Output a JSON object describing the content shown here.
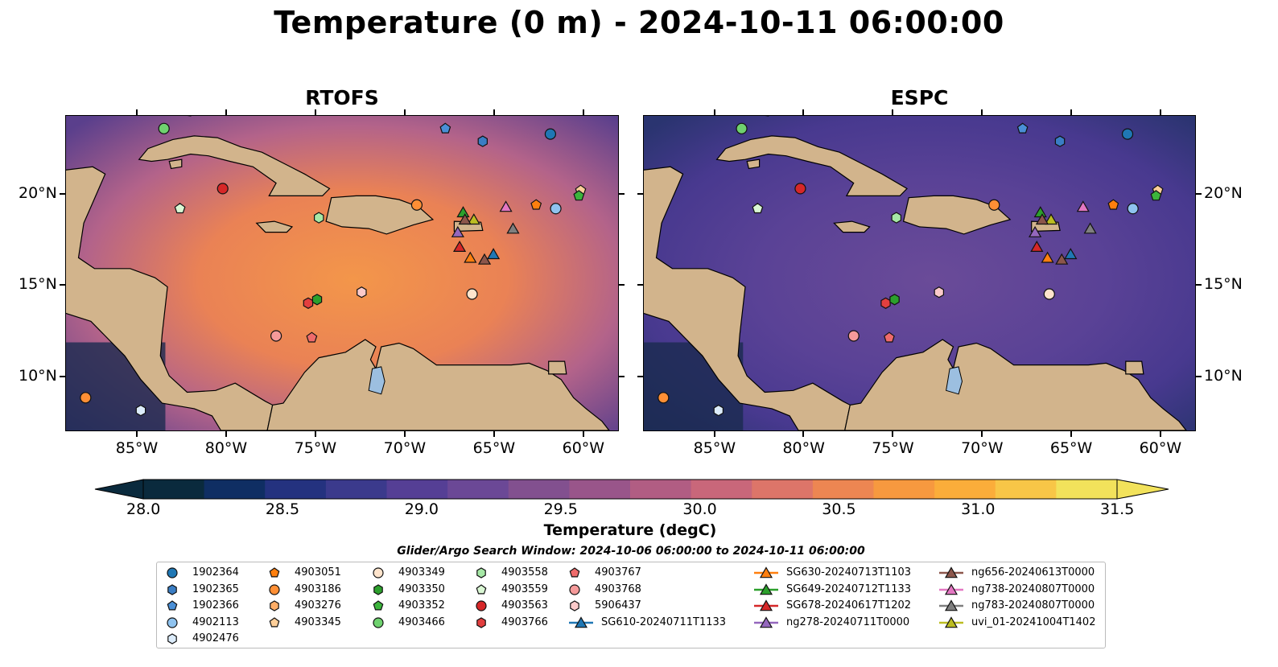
{
  "title": "Temperature (0 m) - 2024-10-11 06:00:00",
  "panels": [
    {
      "id": "left",
      "title": "RTOFS",
      "scheme": "warm"
    },
    {
      "id": "right",
      "title": "ESPC",
      "scheme": "cool"
    }
  ],
  "map_extent": {
    "lon": [
      -89,
      -58
    ],
    "lat": [
      7,
      24.3
    ]
  },
  "x_ticks": [
    {
      "lon": -85,
      "label": "85°W"
    },
    {
      "lon": -80,
      "label": "80°W"
    },
    {
      "lon": -75,
      "label": "75°W"
    },
    {
      "lon": -70,
      "label": "70°W"
    },
    {
      "lon": -65,
      "label": "65°W"
    },
    {
      "lon": -60,
      "label": "60°W"
    }
  ],
  "y_ticks": [
    {
      "lat": 20,
      "label": "20°N"
    },
    {
      "lat": 15,
      "label": "15°N"
    },
    {
      "lat": 10,
      "label": "10°N"
    }
  ],
  "colorbar": {
    "title": "Temperature (degC)",
    "min": 28.0,
    "max": 31.5,
    "extend": "both",
    "tick_values": [
      28.0,
      28.5,
      29.0,
      29.5,
      30.0,
      30.5,
      31.0,
      31.5
    ],
    "tick_labels": [
      "28.0",
      "28.5",
      "29.0",
      "29.5",
      "30.0",
      "30.5",
      "31.0",
      "31.5"
    ],
    "colors": [
      "#0a2a3d",
      "#0f2e63",
      "#24327f",
      "#3b3a8c",
      "#553f95",
      "#6b4896",
      "#82508f",
      "#99558a",
      "#b15d83",
      "#c9677a",
      "#dd7569",
      "#ed8652",
      "#f7993f",
      "#fbad3a",
      "#f8c647",
      "#f2e25b"
    ]
  },
  "legend": {
    "title": "Glider/Argo Search Window: 2024-10-06 06:00:00 to 2024-10-11 06:00:00",
    "columns": [
      [
        {
          "label": "1902364",
          "marker": "circle",
          "color": "#1f77b4"
        },
        {
          "label": "1902365",
          "marker": "hexagon",
          "color": "#3a7dc4"
        },
        {
          "label": "1902366",
          "marker": "pentagon",
          "color": "#4a8fd6"
        },
        {
          "label": "4902113",
          "marker": "circle",
          "color": "#8fc3ef"
        },
        {
          "label": "4902476",
          "marker": "hexagon",
          "color": "#dcecfb"
        }
      ],
      [
        {
          "label": "4903051",
          "marker": "pentagon",
          "color": "#ff7f0e"
        },
        {
          "label": "4903186",
          "marker": "circle",
          "color": "#ff8f35"
        },
        {
          "label": "4903276",
          "marker": "hexagon",
          "color": "#ffad66"
        },
        {
          "label": "4903345",
          "marker": "pentagon",
          "color": "#ffcf99"
        }
      ],
      [
        {
          "label": "4903349",
          "marker": "circle",
          "color": "#ffe4cc"
        },
        {
          "label": "4903350",
          "marker": "hexagon",
          "color": "#2ca02c"
        },
        {
          "label": "4903352",
          "marker": "pentagon",
          "color": "#3cb43c"
        },
        {
          "label": "4903466",
          "marker": "circle",
          "color": "#6fd26f"
        }
      ],
      [
        {
          "label": "4903558",
          "marker": "hexagon",
          "color": "#a6e8a6"
        },
        {
          "label": "4903559",
          "marker": "pentagon",
          "color": "#daf7d4"
        },
        {
          "label": "4903563",
          "marker": "circle",
          "color": "#d62728"
        },
        {
          "label": "4903766",
          "marker": "hexagon",
          "color": "#e23f3f"
        }
      ],
      [
        {
          "label": "4903767",
          "marker": "pentagon",
          "color": "#ef6b6b"
        },
        {
          "label": "4903768",
          "marker": "circle",
          "color": "#f59a9a"
        },
        {
          "label": "5906437",
          "marker": "hexagon",
          "color": "#fbcaca"
        },
        {
          "label": "SG610-20240711T1133",
          "marker": "triangle",
          "color": "#1f77b4"
        }
      ],
      [
        {
          "label": "SG630-20240713T1103",
          "marker": "triangle",
          "color": "#ff7f0e"
        },
        {
          "label": "SG649-20240712T1133",
          "marker": "triangle",
          "color": "#2ca02c"
        },
        {
          "label": "SG678-20240617T1202",
          "marker": "triangle",
          "color": "#d62728"
        },
        {
          "label": "ng278-20240711T0000",
          "marker": "triangle",
          "color": "#9467bd"
        }
      ],
      [
        {
          "label": "ng656-20240613T0000",
          "marker": "triangle",
          "color": "#8c564b"
        },
        {
          "label": "ng738-20240807T0000",
          "marker": "triangle",
          "color": "#e377c2"
        },
        {
          "label": "ng783-20240807T0000",
          "marker": "triangle",
          "color": "#7f7f7f"
        },
        {
          "label": "uvi_01-20241004T1402",
          "marker": "triangle",
          "color": "#bcbd22"
        }
      ]
    ]
  },
  "observations": [
    {
      "lon": -83.5,
      "lat": 23.6,
      "marker": "circle",
      "color": "#6fd26f"
    },
    {
      "lon": -67.7,
      "lat": 23.6,
      "marker": "pentagon",
      "color": "#4a8fd6"
    },
    {
      "lon": -65.6,
      "lat": 22.9,
      "marker": "hexagon",
      "color": "#3a7dc4"
    },
    {
      "lon": -61.8,
      "lat": 23.3,
      "marker": "circle",
      "color": "#1f77b4"
    },
    {
      "lon": -80.2,
      "lat": 20.3,
      "marker": "circle",
      "color": "#d62728"
    },
    {
      "lon": -82.6,
      "lat": 19.2,
      "marker": "pentagon",
      "color": "#daf7d4"
    },
    {
      "lon": -74.8,
      "lat": 18.7,
      "marker": "hexagon",
      "color": "#a6e8a6"
    },
    {
      "lon": -69.3,
      "lat": 19.4,
      "marker": "circle",
      "color": "#ff8f35"
    },
    {
      "lon": -62.6,
      "lat": 19.4,
      "marker": "pentagon",
      "color": "#ff7f0e"
    },
    {
      "lon": -61.5,
      "lat": 19.2,
      "marker": "circle",
      "color": "#8fc3ef"
    },
    {
      "lon": -60.1,
      "lat": 20.2,
      "marker": "pentagon",
      "color": "#ffcf99"
    },
    {
      "lon": -60.2,
      "lat": 19.9,
      "marker": "pentagon",
      "color": "#3cb43c"
    },
    {
      "lon": -75.4,
      "lat": 14.0,
      "marker": "hexagon",
      "color": "#e23f3f"
    },
    {
      "lon": -74.9,
      "lat": 14.2,
      "marker": "hexagon",
      "color": "#2ca02c"
    },
    {
      "lon": -72.4,
      "lat": 14.6,
      "marker": "hexagon",
      "color": "#fbcaca"
    },
    {
      "lon": -66.2,
      "lat": 14.5,
      "marker": "circle",
      "color": "#ffe4cc"
    },
    {
      "lon": -77.2,
      "lat": 12.2,
      "marker": "circle",
      "color": "#f59a9a"
    },
    {
      "lon": -75.2,
      "lat": 12.1,
      "marker": "pentagon",
      "color": "#ef6b6b"
    },
    {
      "lon": -87.9,
      "lat": 8.8,
      "marker": "circle",
      "color": "#ff8f35"
    },
    {
      "lon": -84.8,
      "lat": 8.1,
      "marker": "hexagon",
      "color": "#dcecfb"
    },
    {
      "lon": -64.3,
      "lat": 19.3,
      "marker": "triangle",
      "color": "#e377c2"
    },
    {
      "lon": -66.7,
      "lat": 19.0,
      "marker": "triangle",
      "color": "#2ca02c"
    },
    {
      "lon": -66.1,
      "lat": 18.6,
      "marker": "triangle",
      "color": "#bcbd22"
    },
    {
      "lon": -66.6,
      "lat": 18.6,
      "marker": "triangle",
      "color": "#8c564b"
    },
    {
      "lon": -67.0,
      "lat": 17.9,
      "marker": "triangle",
      "color": "#9467bd"
    },
    {
      "lon": -63.9,
      "lat": 18.1,
      "marker": "triangle",
      "color": "#7f7f7f"
    },
    {
      "lon": -66.9,
      "lat": 17.1,
      "marker": "triangle",
      "color": "#d62728"
    },
    {
      "lon": -66.3,
      "lat": 16.5,
      "marker": "triangle",
      "color": "#ff7f0e"
    },
    {
      "lon": -65.5,
      "lat": 16.4,
      "marker": "triangle",
      "color": "#8c564b"
    },
    {
      "lon": -65.0,
      "lat": 16.7,
      "marker": "triangle",
      "color": "#1f77b4"
    }
  ]
}
